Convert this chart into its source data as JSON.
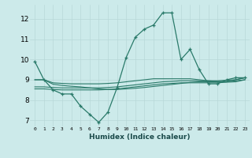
{
  "xlabel": "Humidex (Indice chaleur)",
  "bg_color": "#cceaea",
  "grid_color": "#b8d8d8",
  "line_color": "#2a7a6a",
  "x_ticks": [
    0,
    1,
    2,
    3,
    4,
    5,
    6,
    7,
    8,
    9,
    10,
    11,
    12,
    13,
    14,
    15,
    16,
    17,
    18,
    19,
    20,
    21,
    22,
    23
  ],
  "y_ticks": [
    7,
    8,
    9,
    10,
    11,
    12
  ],
  "xlim": [
    -0.5,
    23.5
  ],
  "ylim": [
    6.7,
    12.7
  ],
  "series": [
    [
      9.9,
      9.0,
      8.5,
      8.3,
      8.3,
      7.7,
      7.3,
      6.9,
      7.4,
      8.6,
      10.1,
      11.1,
      11.5,
      11.7,
      12.3,
      12.3,
      10.0,
      10.5,
      9.5,
      8.8,
      8.8,
      9.0,
      9.1,
      9.1
    ],
    [
      9.0,
      9.0,
      8.85,
      8.82,
      8.8,
      8.8,
      8.8,
      8.8,
      8.82,
      8.85,
      8.9,
      8.95,
      9.0,
      9.05,
      9.05,
      9.05,
      9.05,
      9.05,
      9.0,
      8.95,
      8.92,
      8.92,
      9.0,
      9.1
    ],
    [
      8.55,
      8.55,
      8.52,
      8.5,
      8.5,
      8.5,
      8.5,
      8.5,
      8.52,
      8.55,
      8.6,
      8.65,
      8.7,
      8.75,
      8.8,
      8.82,
      8.85,
      8.85,
      8.85,
      8.85,
      8.85,
      8.88,
      8.9,
      9.0
    ],
    [
      8.65,
      8.65,
      8.62,
      8.6,
      8.6,
      8.6,
      8.6,
      8.6,
      8.62,
      8.65,
      8.7,
      8.75,
      8.8,
      8.85,
      8.9,
      8.92,
      8.95,
      8.95,
      8.95,
      8.95,
      8.95,
      8.98,
      9.0,
      9.1
    ],
    [
      9.0,
      9.0,
      8.78,
      8.72,
      8.68,
      8.65,
      8.6,
      8.55,
      8.52,
      8.52,
      8.55,
      8.58,
      8.62,
      8.67,
      8.72,
      8.77,
      8.82,
      8.87,
      8.9,
      8.9,
      8.9,
      8.9,
      8.95,
      9.0
    ]
  ]
}
